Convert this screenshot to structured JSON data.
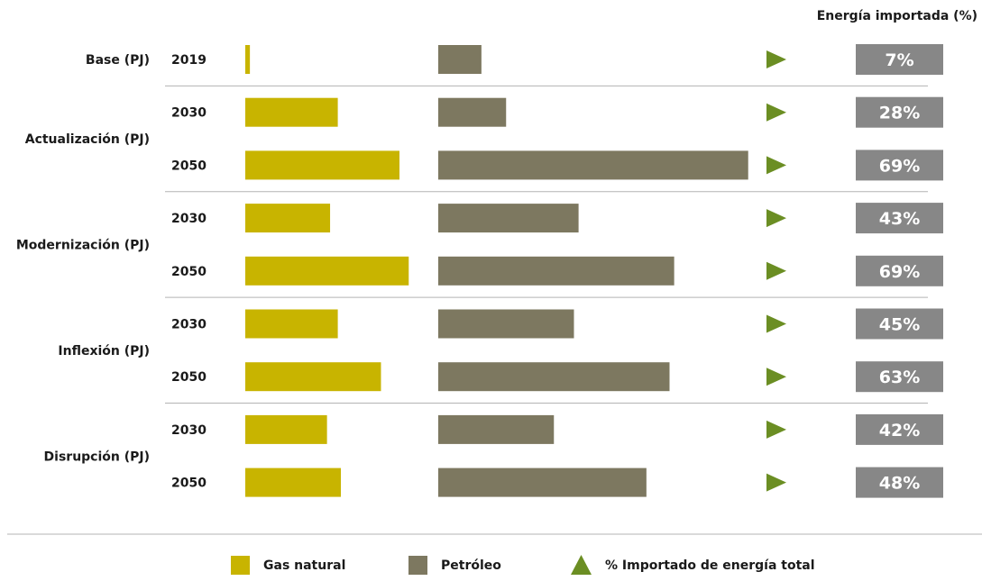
{
  "chart_data": {
    "type": "bar",
    "header": "Energía importada (%)",
    "groups": [
      {
        "label": "Base (PJ)",
        "rows": [
          0
        ]
      },
      {
        "label": "Actualización (PJ)",
        "rows": [
          1,
          2
        ]
      },
      {
        "label": "Modernización (PJ)",
        "rows": [
          3,
          4
        ]
      },
      {
        "label": "Inflexión (PJ)",
        "rows": [
          5,
          6
        ]
      },
      {
        "label": "Disrupción (PJ)",
        "rows": [
          7,
          8
        ]
      }
    ],
    "years": [
      "2019",
      "2030",
      "2050",
      "2030",
      "2050",
      "2030",
      "2050",
      "2030",
      "2050"
    ],
    "series": [
      {
        "name": "Gas natural",
        "color": "#c8b400",
        "values": [
          3,
          60,
          100,
          55,
          106,
          60,
          88,
          53,
          62
        ]
      },
      {
        "name": "Petróleo",
        "color": "#7d7860",
        "values": [
          28,
          44,
          201,
          91,
          153,
          88,
          150,
          75,
          135
        ]
      }
    ],
    "imported_pct": [
      "7%",
      "28%",
      "69%",
      "43%",
      "69%",
      "45%",
      "63%",
      "42%",
      "48%"
    ],
    "colors": {
      "triangle": "#6b8e23",
      "pct_box": "#878787",
      "divider": "#b3b3b3"
    },
    "legend": {
      "items": [
        {
          "label": "Gas natural",
          "symbol": "square",
          "color": "#c8b400"
        },
        {
          "label": "Petróleo",
          "symbol": "square",
          "color": "#7d7860"
        },
        {
          "label": "% Importado de energía total",
          "symbol": "triangle",
          "color": "#6b8e23"
        }
      ]
    }
  }
}
